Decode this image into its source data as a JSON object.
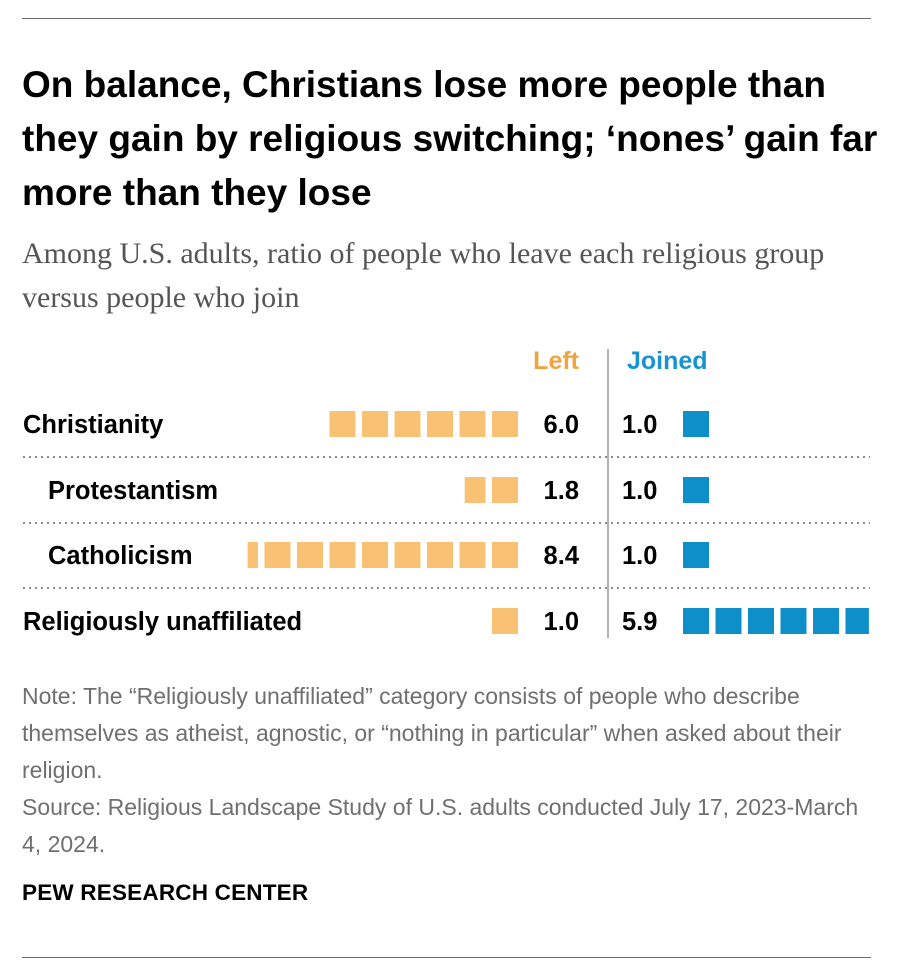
{
  "title": "On balance, Christians lose more people than they gain by religious switching; ‘nones’ gain far more than they lose",
  "subtitle": "Among U.S. adults, ratio of people who leave each religious group versus people who join",
  "note": "Note: The “Religiously unaffiliated” category consists of people who describe themselves as atheist, agnostic, or “nothing in particular” when asked about their religion.",
  "source": "Source: Religious Landscape Study of U.S. adults conducted July 17, 2023-March 4, 2024.",
  "organization": "PEW RESEARCH CENTER",
  "chart_data": {
    "type": "bar",
    "categories": [
      "Christianity",
      "Protestantism",
      "Catholicism",
      "Religiously unaffiliated"
    ],
    "indented": [
      false,
      true,
      true,
      false
    ],
    "series": [
      {
        "name": "Left",
        "values": [
          6.0,
          1.8,
          8.4,
          1.0
        ],
        "labels": [
          "6.0",
          "1.8",
          "8.4",
          "1.0"
        ],
        "color": "#F8C173"
      },
      {
        "name": "Joined",
        "values": [
          1.0,
          1.0,
          1.0,
          5.9
        ],
        "labels": [
          "1.0",
          "1.0",
          "1.0",
          "5.9"
        ],
        "color": "#0E8FC9"
      }
    ],
    "legend": "top"
  }
}
